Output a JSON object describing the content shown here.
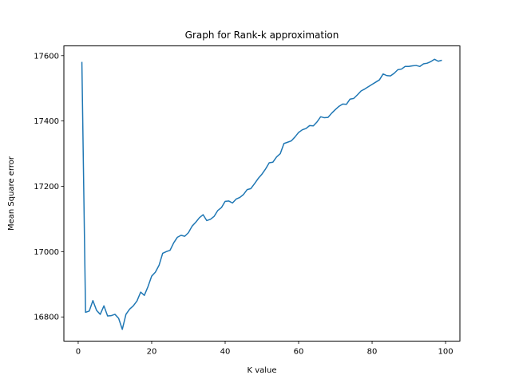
{
  "chart_data": {
    "type": "line",
    "title": "Graph for Rank-k approximation",
    "xlabel": "K value",
    "ylabel": "Mean Square error",
    "xlim": [
      -3.9,
      103.9
    ],
    "ylim": [
      16726,
      17630
    ],
    "xticks": [
      0,
      20,
      40,
      60,
      80,
      100
    ],
    "yticks": [
      16800,
      17000,
      17200,
      17400,
      17600
    ],
    "grid": false,
    "line_color": "#1f77b4",
    "series": [
      {
        "x": [
          1,
          2,
          3,
          4,
          5,
          6,
          7,
          8,
          9,
          10,
          11,
          12,
          13,
          14,
          15,
          16,
          17,
          18,
          19,
          20,
          21,
          22,
          23,
          24,
          25,
          26,
          27,
          28,
          29,
          30,
          31,
          32,
          33,
          34,
          35,
          36,
          37,
          38,
          39,
          40,
          41,
          42,
          43,
          44,
          45,
          46,
          47,
          48,
          49,
          50,
          51,
          52,
          53,
          54,
          55,
          56,
          57,
          58,
          59,
          60,
          61,
          62,
          63,
          64,
          65,
          66,
          67,
          68,
          69,
          70,
          71,
          72,
          73,
          74,
          75,
          76,
          77,
          78,
          79,
          80,
          81,
          82,
          83,
          84,
          85,
          86,
          87,
          88,
          89,
          90,
          91,
          92,
          93,
          94,
          95,
          96,
          97,
          98,
          99
        ],
        "values": [
          17581,
          16814,
          16818,
          16850,
          16820,
          16808,
          16834,
          16803,
          16804,
          16808,
          16796,
          16762,
          16808,
          16824,
          16834,
          16849,
          16876,
          16866,
          16893,
          16925,
          16937,
          16958,
          16995,
          17000,
          17004,
          17027,
          17044,
          17050,
          17047,
          17058,
          17078,
          17090,
          17104,
          17113,
          17095,
          17099,
          17108,
          17126,
          17135,
          17154,
          17155,
          17149,
          17161,
          17166,
          17175,
          17190,
          17193,
          17208,
          17224,
          17237,
          17253,
          17272,
          17274,
          17290,
          17300,
          17331,
          17335,
          17339,
          17351,
          17365,
          17373,
          17377,
          17386,
          17385,
          17397,
          17413,
          17410,
          17411,
          17424,
          17435,
          17445,
          17452,
          17451,
          17467,
          17469,
          17480,
          17492,
          17498,
          17505,
          17512,
          17519,
          17526,
          17544,
          17539,
          17538,
          17546,
          17557,
          17559,
          17567,
          17567,
          17569,
          17570,
          17567,
          17575,
          17577,
          17582,
          17589,
          17583,
          17586
        ]
      }
    ]
  }
}
